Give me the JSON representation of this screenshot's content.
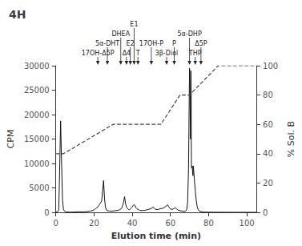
{
  "chart_data": {
    "type": "line",
    "title": "4H",
    "xlabel": "Elution time (min)",
    "ylabel": "CPM",
    "y2label": "% Sol. B",
    "xlim": [
      0,
      105
    ],
    "xticks": [
      0,
      20,
      40,
      60,
      80,
      100
    ],
    "ylim": [
      0,
      30000
    ],
    "yticks": [
      0,
      5000,
      10000,
      15000,
      20000,
      25000,
      30000
    ],
    "y2lim": [
      0,
      100
    ],
    "y2ticks": [
      0,
      20,
      40,
      60,
      80,
      100
    ],
    "grid": false,
    "series": [
      {
        "color": "#111111",
        "line_style": "solid",
        "x": [
          0.0,
          0.5,
          1.0,
          1.5,
          2.0,
          2.5,
          3.0,
          3.5,
          4.0,
          4.5,
          5.0,
          5.5,
          6.0,
          7.0,
          8.0,
          9.0,
          10.0,
          11.0,
          12.0,
          13.0,
          14.0,
          15.0,
          16.0,
          17.0,
          18.0,
          19.0,
          20.0,
          21.0,
          22.0,
          23.0,
          24.0,
          25.0,
          25.5,
          26.0,
          26.5,
          27.0,
          28.0,
          29.0,
          30.0,
          31.0,
          32.0,
          33.0,
          33.5,
          34.0,
          34.5,
          35.0,
          35.5,
          36.0,
          36.5,
          37.0,
          37.5,
          38.0,
          38.5,
          39.0,
          39.5,
          40.0,
          40.5,
          41.0,
          41.5,
          42.0,
          42.5,
          43.0,
          43.5,
          44.0,
          45.0,
          46.0,
          47.0,
          48.0,
          49.0,
          50.0,
          50.5,
          51.0,
          51.5,
          52.0,
          53.0,
          54.0,
          55.0,
          56.0,
          57.0,
          58.0,
          58.5,
          59.0,
          59.5,
          60.0,
          61.0,
          62.0,
          62.5,
          63.0,
          63.5,
          64.0,
          65.0,
          66.0,
          67.0,
          68.0,
          68.5,
          69.0,
          69.5,
          70.0,
          70.15,
          70.3,
          70.5,
          70.7,
          70.85,
          71.0,
          71.2,
          71.4,
          71.6,
          71.8,
          72.0,
          72.2,
          72.5,
          73.0,
          73.5,
          74.0,
          74.5,
          75.0,
          76.0,
          77.0,
          78.0,
          80.0,
          85.0,
          90.0,
          95.0,
          100.0,
          105.0
        ],
        "values": [
          50,
          80,
          150,
          400,
          8500,
          18700,
          10000,
          2500,
          600,
          250,
          120,
          80,
          60,
          50,
          50,
          60,
          80,
          100,
          110,
          100,
          90,
          100,
          150,
          200,
          250,
          350,
          500,
          800,
          1100,
          1700,
          2300,
          6500,
          2800,
          1000,
          500,
          350,
          280,
          230,
          280,
          320,
          380,
          450,
          550,
          650,
          900,
          1400,
          2100,
          3200,
          1800,
          1100,
          800,
          600,
          500,
          700,
          900,
          1100,
          1400,
          1600,
          1300,
          900,
          700,
          600,
          500,
          400,
          350,
          380,
          450,
          550,
          650,
          800,
          950,
          1100,
          850,
          650,
          550,
          650,
          750,
          850,
          1050,
          1350,
          1550,
          1250,
          900,
          700,
          600,
          800,
          950,
          800,
          600,
          450,
          350,
          280,
          180,
          280,
          500,
          2000,
          9000,
          29500,
          28000,
          24000,
          15000,
          29000,
          25000,
          9500,
          9000,
          9500,
          8500,
          7500,
          9500,
          8500,
          7000,
          4500,
          2500,
          1200,
          600,
          300,
          150,
          80,
          50,
          30,
          20,
          15,
          10,
          8,
          5
        ]
      },
      {
        "color": "#444444",
        "line_style": "dashed",
        "axis": "y2",
        "x": [
          0,
          4,
          30,
          55,
          65,
          70,
          85,
          100,
          105
        ],
        "values": [
          40,
          40,
          60,
          60,
          80,
          80,
          100,
          100,
          100
        ]
      }
    ],
    "annotations": [
      {
        "text": "17OH-Δ5P",
        "x": 22
      },
      {
        "text": "5α-DHT",
        "x": 27
      },
      {
        "text": "DHEA",
        "x": 34
      },
      {
        "text": "Δ4",
        "x": 37
      },
      {
        "text": "E2",
        "x": 39
      },
      {
        "text": "E1",
        "x": 41
      },
      {
        "text": "T",
        "x": 43
      },
      {
        "text": "17OH-P",
        "x": 50
      },
      {
        "text": "3β-Diol",
        "x": 58
      },
      {
        "text": "P",
        "x": 62
      },
      {
        "text": "5α-DHP",
        "x": 70
      },
      {
        "text": "THP",
        "x": 73
      },
      {
        "text": "Δ5P",
        "x": 76
      }
    ]
  }
}
